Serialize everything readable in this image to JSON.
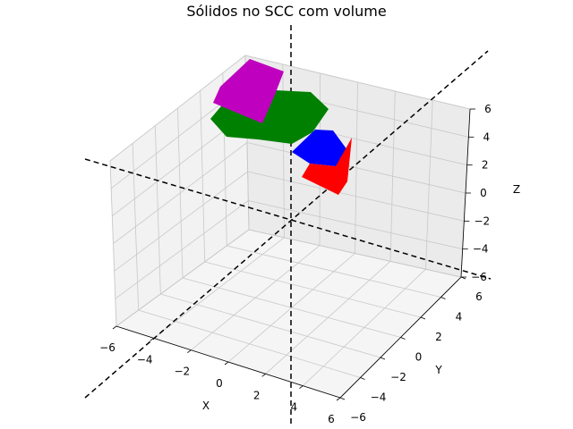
{
  "chart_data": {
    "type": "3d-solids",
    "title": "Sólidos no SCC com volume",
    "xlabel": "X",
    "ylabel": "Y",
    "zlabel": "Z",
    "xlim": [
      -6,
      6
    ],
    "ylim": [
      -6,
      6
    ],
    "zlim": [
      -6,
      6
    ],
    "x_ticks": [
      "−6",
      "−4",
      "−2",
      "0",
      "2",
      "4",
      "6"
    ],
    "y_ticks": [
      "−6",
      "−4",
      "−2",
      "0",
      "2",
      "4",
      "6"
    ],
    "z_ticks": [
      "−6",
      "−4",
      "−2",
      "0",
      "2",
      "4",
      "6"
    ],
    "grid": true,
    "coordinate_axes_style": "black dashed lines through origin",
    "solids": [
      {
        "color": "#bf00bf",
        "label": "magenta solid"
      },
      {
        "color": "#008000",
        "label": "green solid"
      },
      {
        "color": "#0000ff",
        "label": "blue solid"
      },
      {
        "color": "#ff0000",
        "label": "red solid"
      }
    ]
  }
}
